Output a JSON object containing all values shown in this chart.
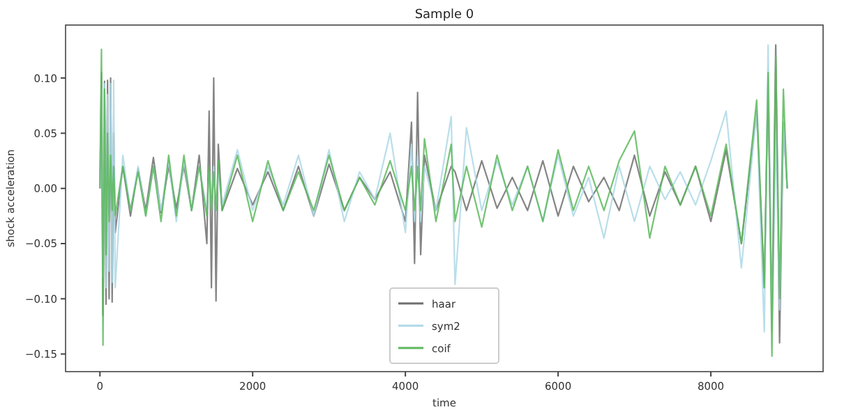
{
  "chart_data": {
    "type": "line",
    "title": "Sample 0",
    "xlabel": "time",
    "ylabel": "shock acceleration",
    "x": [
      0,
      20,
      40,
      60,
      80,
      100,
      120,
      140,
      160,
      180,
      200,
      300,
      400,
      500,
      600,
      700,
      800,
      900,
      1000,
      1100,
      1200,
      1300,
      1400,
      1430,
      1460,
      1490,
      1520,
      1550,
      1600,
      1800,
      2000,
      2200,
      2400,
      2600,
      2800,
      3000,
      3200,
      3400,
      3600,
      3800,
      4000,
      4080,
      4120,
      4160,
      4200,
      4250,
      4400,
      4600,
      4650,
      4800,
      5000,
      5200,
      5400,
      5600,
      5800,
      6000,
      6200,
      6400,
      6600,
      6800,
      7000,
      7200,
      7400,
      7600,
      7800,
      8000,
      8200,
      8400,
      8600,
      8700,
      8750,
      8800,
      8850,
      8900,
      8950,
      9000
    ],
    "series": [
      {
        "name": "haar",
        "color": "#6e6e6e",
        "values": [
          0,
          0.105,
          -0.115,
          0.097,
          -0.105,
          0.098,
          -0.1,
          0.1,
          -0.103,
          0.05,
          -0.04,
          0.02,
          -0.025,
          0.018,
          -0.02,
          0.028,
          -0.022,
          0.02,
          -0.018,
          0.02,
          -0.02,
          0.03,
          -0.05,
          0.07,
          -0.09,
          0.1,
          -0.102,
          0.04,
          -0.02,
          0.018,
          -0.015,
          0.015,
          -0.02,
          0.02,
          -0.025,
          0.022,
          -0.02,
          0.01,
          -0.01,
          0.015,
          -0.03,
          0.06,
          -0.068,
          0.087,
          -0.06,
          0.03,
          -0.02,
          0.02,
          0.015,
          -0.02,
          0.025,
          -0.018,
          0.01,
          -0.02,
          0.025,
          -0.025,
          0.02,
          -0.012,
          0.01,
          -0.02,
          0.03,
          -0.025,
          0.015,
          -0.015,
          0.02,
          -0.03,
          0.035,
          -0.05,
          0.07,
          -0.09,
          0.1,
          -0.12,
          0.13,
          -0.14,
          0.06,
          0
        ]
      },
      {
        "name": "sym2",
        "color": "#add8e6",
        "values": [
          0,
          0.09,
          -0.08,
          0.095,
          -0.09,
          0.085,
          -0.075,
          0.095,
          -0.085,
          0.098,
          -0.09,
          0.03,
          -0.02,
          0.02,
          -0.025,
          0.02,
          -0.02,
          0.025,
          -0.03,
          0.025,
          -0.02,
          0.02,
          -0.02,
          0.015,
          -0.02,
          0.02,
          -0.02,
          0.015,
          -0.015,
          0.035,
          -0.02,
          0.02,
          -0.015,
          0.03,
          -0.025,
          0.035,
          -0.03,
          0.015,
          -0.01,
          0.05,
          -0.04,
          0.04,
          -0.03,
          0.03,
          -0.03,
          0.02,
          -0.02,
          0.065,
          -0.087,
          0.055,
          -0.02,
          0.025,
          -0.015,
          0.02,
          -0.03,
          0.03,
          -0.025,
          0.01,
          -0.045,
          0.02,
          -0.03,
          0.02,
          -0.01,
          0.015,
          -0.015,
          0.025,
          0.07,
          -0.072,
          0.07,
          -0.13,
          0.13,
          -0.13,
          0.05,
          -0.11,
          0.06,
          0
        ]
      },
      {
        "name": "coif",
        "color": "#5cb85c",
        "values": [
          0,
          0.126,
          -0.142,
          0.09,
          -0.06,
          0.05,
          -0.03,
          0.03,
          -0.02,
          0.02,
          -0.025,
          0.02,
          -0.02,
          0.015,
          -0.025,
          0.02,
          -0.03,
          0.03,
          -0.025,
          0.03,
          -0.02,
          0.02,
          -0.025,
          0.02,
          -0.02,
          0.015,
          -0.02,
          0.025,
          -0.02,
          0.03,
          -0.03,
          0.025,
          -0.02,
          0.015,
          -0.02,
          0.03,
          -0.02,
          0.01,
          -0.015,
          0.025,
          -0.02,
          0.02,
          -0.02,
          0.02,
          -0.02,
          0.045,
          -0.03,
          0.04,
          -0.03,
          0.02,
          -0.035,
          0.03,
          -0.02,
          0.02,
          -0.03,
          0.035,
          -0.02,
          0.02,
          -0.02,
          0.025,
          0.052,
          -0.045,
          0.02,
          -0.015,
          0.02,
          -0.025,
          0.04,
          -0.05,
          0.08,
          -0.09,
          0.105,
          -0.152,
          0.12,
          -0.1,
          0.09,
          0
        ]
      }
    ],
    "xlim": [
      -450,
      9470
    ],
    "xticks": [
      0,
      2000,
      4000,
      6000,
      8000
    ],
    "ylim": [
      -0.166,
      0.148
    ],
    "yticks": [
      {
        "value": -0.15,
        "label": "−0.15"
      },
      {
        "value": -0.1,
        "label": "−0.10"
      },
      {
        "value": -0.05,
        "label": "−0.05"
      },
      {
        "value": 0,
        "label": "0.00"
      },
      {
        "value": 0.05,
        "label": "0.05"
      },
      {
        "value": 0.1,
        "label": "0.10"
      }
    ],
    "legend": "bottom",
    "grid": false
  }
}
